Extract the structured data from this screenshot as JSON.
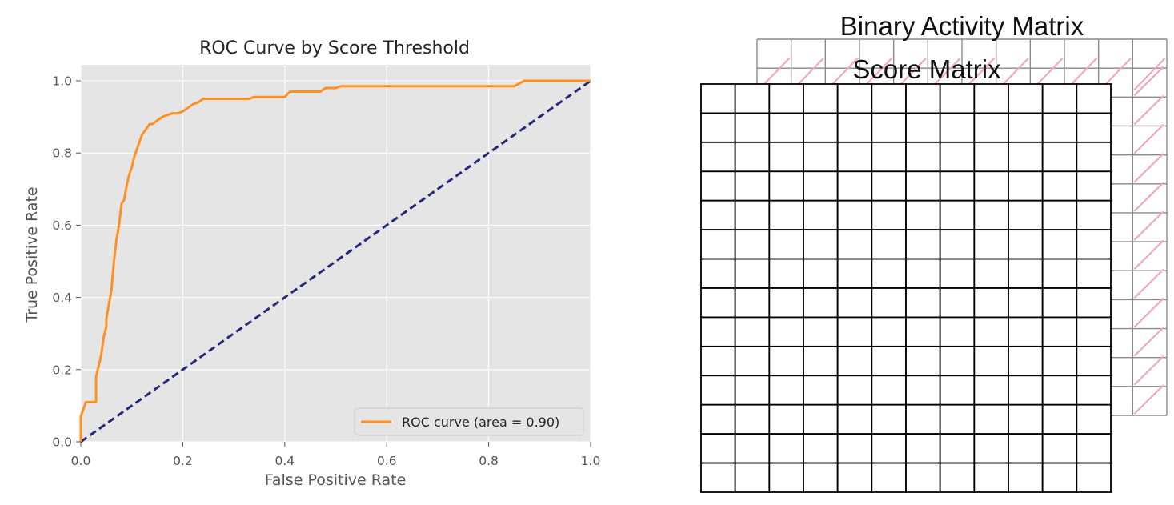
{
  "chart_data": {
    "type": "line",
    "title": "ROC Curve by Score Threshold",
    "xlabel": "False Positive Rate",
    "ylabel": "True Positive Rate",
    "xlim": [
      0.0,
      1.0
    ],
    "ylim": [
      0.0,
      1.0
    ],
    "xticks": [
      "0.0",
      "0.2",
      "0.4",
      "0.6",
      "0.8",
      "1.0"
    ],
    "yticks": [
      "0.0",
      "0.2",
      "0.4",
      "0.6",
      "0.8",
      "1.0"
    ],
    "grid": true,
    "legend_position": "lower-right",
    "colors": {
      "roc": "#ff9124",
      "chance": "#28287a",
      "plot_bg": "#e5e5e5",
      "grid": "#ffffff"
    },
    "series": [
      {
        "name": "ROC curve (area = 0.90)",
        "style": "solid",
        "x": [
          0.0,
          0.0,
          0.005,
          0.01,
          0.03,
          0.03,
          0.035,
          0.04,
          0.045,
          0.05,
          0.05,
          0.055,
          0.06,
          0.065,
          0.07,
          0.075,
          0.08,
          0.085,
          0.09,
          0.095,
          0.1,
          0.105,
          0.11,
          0.115,
          0.12,
          0.13,
          0.135,
          0.14,
          0.15,
          0.16,
          0.17,
          0.18,
          0.19,
          0.2,
          0.21,
          0.22,
          0.23,
          0.24,
          0.33,
          0.34,
          0.4,
          0.41,
          0.47,
          0.48,
          0.5,
          0.51,
          0.64,
          0.85,
          0.87,
          1.0
        ],
        "y": [
          0.0,
          0.07,
          0.09,
          0.11,
          0.11,
          0.18,
          0.21,
          0.24,
          0.29,
          0.32,
          0.34,
          0.38,
          0.42,
          0.5,
          0.56,
          0.6,
          0.66,
          0.67,
          0.71,
          0.74,
          0.76,
          0.79,
          0.81,
          0.83,
          0.85,
          0.87,
          0.88,
          0.88,
          0.89,
          0.9,
          0.905,
          0.91,
          0.91,
          0.915,
          0.925,
          0.935,
          0.94,
          0.95,
          0.95,
          0.955,
          0.955,
          0.97,
          0.97,
          0.98,
          0.98,
          0.985,
          0.985,
          0.985,
          1.0,
          1.0
        ]
      },
      {
        "style": "dashed",
        "x": [
          0.0,
          1.0
        ],
        "y": [
          0.0,
          1.0
        ]
      }
    ]
  },
  "matrix_diagram": {
    "back_title": "Binary Activity Matrix",
    "front_title": "Score Matrix",
    "front_rows": 14,
    "front_cols": 12,
    "colors": {
      "front_line": "#000000",
      "back_line": "#8a8a8a",
      "mark": "#f2a7bf"
    }
  }
}
